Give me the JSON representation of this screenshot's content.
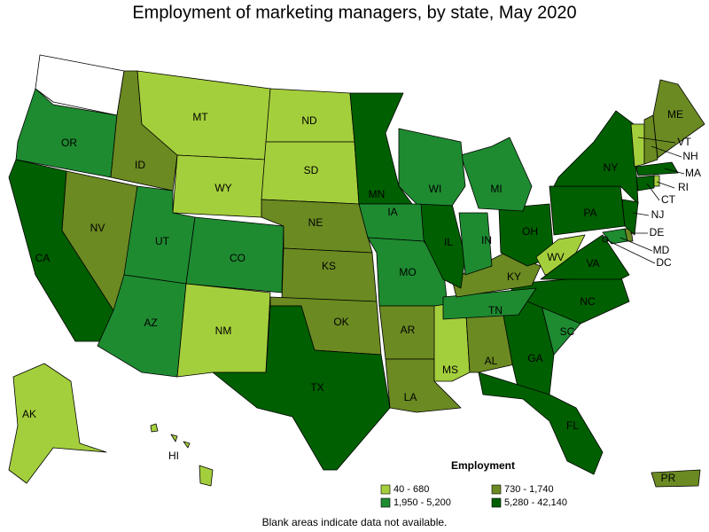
{
  "title": "Employment of marketing managers, by state, May 2020",
  "legend": {
    "title": "Employment",
    "items": [
      {
        "label": "40 - 680",
        "color": "#a4cf3c"
      },
      {
        "label": "730 - 1,740",
        "color": "#6b8a22"
      },
      {
        "label": "1,950 - 5,200",
        "color": "#1e8b31"
      },
      {
        "label": "5,280 - 42,140",
        "color": "#005f00"
      }
    ]
  },
  "states": [
    {
      "abbr": "OR",
      "color": "#1e8b31"
    },
    {
      "abbr": "CA",
      "color": "#005f00"
    },
    {
      "abbr": "NV",
      "color": "#6b8a22"
    },
    {
      "abbr": "ID",
      "color": "#6b8a22"
    },
    {
      "abbr": "MT",
      "color": "#a4cf3c"
    },
    {
      "abbr": "WY",
      "color": "#a4cf3c"
    },
    {
      "abbr": "UT",
      "color": "#1e8b31"
    },
    {
      "abbr": "CO",
      "color": "#1e8b31"
    },
    {
      "abbr": "AZ",
      "color": "#1e8b31"
    },
    {
      "abbr": "NM",
      "color": "#a4cf3c"
    },
    {
      "abbr": "ND",
      "color": "#a4cf3c"
    },
    {
      "abbr": "SD",
      "color": "#a4cf3c"
    },
    {
      "abbr": "NE",
      "color": "#6b8a22"
    },
    {
      "abbr": "KS",
      "color": "#6b8a22"
    },
    {
      "abbr": "OK",
      "color": "#6b8a22"
    },
    {
      "abbr": "TX",
      "color": "#005f00"
    },
    {
      "abbr": "MN",
      "color": "#005f00"
    },
    {
      "abbr": "IA",
      "color": "#1e8b31"
    },
    {
      "abbr": "MO",
      "color": "#1e8b31"
    },
    {
      "abbr": "AR",
      "color": "#6b8a22"
    },
    {
      "abbr": "LA",
      "color": "#6b8a22"
    },
    {
      "abbr": "MS",
      "color": "#a4cf3c"
    },
    {
      "abbr": "AL",
      "color": "#6b8a22"
    },
    {
      "abbr": "GA",
      "color": "#005f00"
    },
    {
      "abbr": "FL",
      "color": "#005f00"
    },
    {
      "abbr": "SC",
      "color": "#1e8b31"
    },
    {
      "abbr": "NC",
      "color": "#005f00"
    },
    {
      "abbr": "TN",
      "color": "#1e8b31"
    },
    {
      "abbr": "KY",
      "color": "#6b8a22"
    },
    {
      "abbr": "IL",
      "color": "#005f00"
    },
    {
      "abbr": "IN",
      "color": "#1e8b31"
    },
    {
      "abbr": "OH",
      "color": "#005f00"
    },
    {
      "abbr": "MI",
      "color": "#1e8b31"
    },
    {
      "abbr": "WI",
      "color": "#1e8b31"
    },
    {
      "abbr": "PA",
      "color": "#005f00"
    },
    {
      "abbr": "NY",
      "color": "#005f00"
    },
    {
      "abbr": "WV",
      "color": "#a4cf3c"
    },
    {
      "abbr": "VA",
      "color": "#005f00"
    },
    {
      "abbr": "MD",
      "color": "#1e8b31"
    },
    {
      "abbr": "DE",
      "color": "#6b8a22"
    },
    {
      "abbr": "DC",
      "color": "#005f00"
    },
    {
      "abbr": "NJ",
      "color": "#005f00"
    },
    {
      "abbr": "CT",
      "color": "#005f00"
    },
    {
      "abbr": "RI",
      "color": "#a4cf3c"
    },
    {
      "abbr": "MA",
      "color": "#005f00"
    },
    {
      "abbr": "VT",
      "color": "#a4cf3c"
    },
    {
      "abbr": "NH",
      "color": "#6b8a22"
    },
    {
      "abbr": "ME",
      "color": "#6b8a22"
    },
    {
      "abbr": "AK",
      "color": "#a4cf3c"
    },
    {
      "abbr": "HI",
      "color": "#a4cf3c"
    },
    {
      "abbr": "PR",
      "color": "#6b8a22"
    }
  ],
  "note": "Blank areas indicate data not available."
}
